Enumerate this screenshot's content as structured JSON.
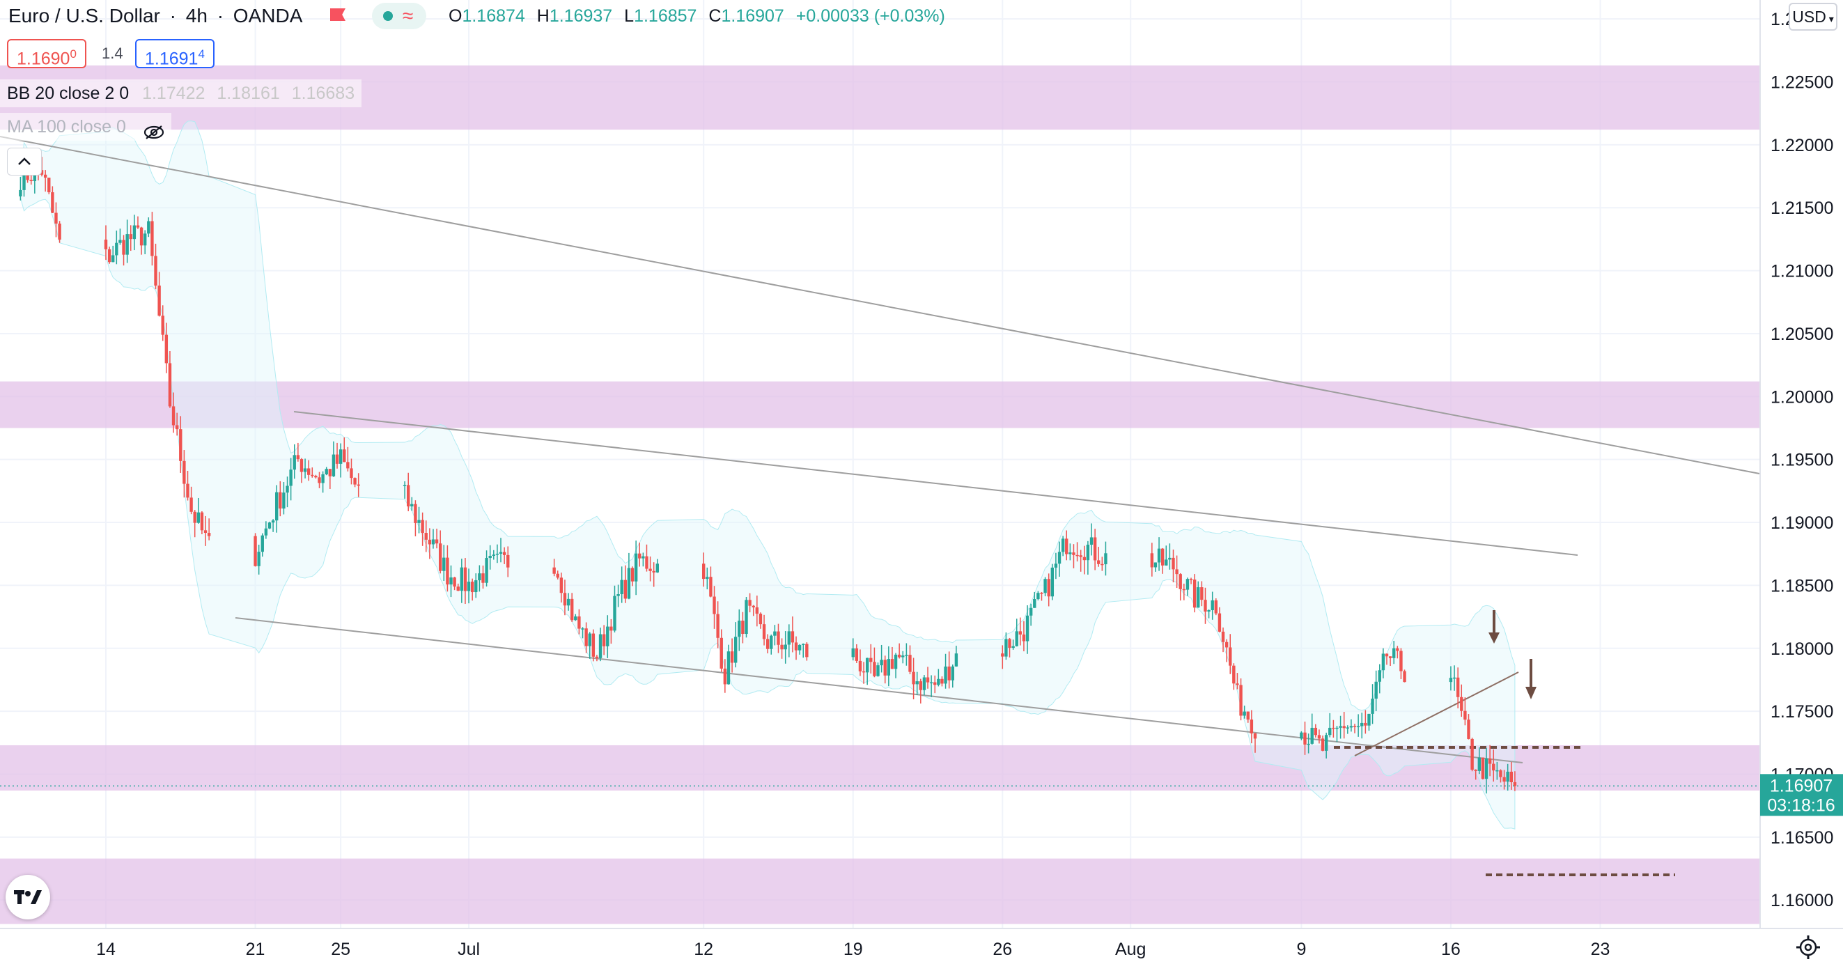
{
  "header": {
    "symbol": "Euro / U.S. Dollar",
    "interval": "4h",
    "broker": "OANDA",
    "o_label": "O",
    "o_value": "1.16874",
    "h_label": "H",
    "h_value": "1.16937",
    "l_label": "L",
    "l_value": "1.16857",
    "c_label": "C",
    "c_value": "1.16907",
    "change": "+0.00033 (+0.03%)"
  },
  "quote": {
    "bid": "1.1690",
    "bid_pip": "0",
    "spread": "1.4",
    "ask": "1.1691",
    "ask_pip": "4"
  },
  "indicators": {
    "bb_label": "BB 20 close 2 0",
    "bb_values": [
      "1.17422",
      "1.18161",
      "1.16683"
    ],
    "ma_label": "MA 100 close 0"
  },
  "currency_selector": "USD",
  "last_price": {
    "value": "1.16907",
    "countdown": "03:18:16"
  },
  "colors": {
    "up": "#26a69a",
    "down": "#ef5350",
    "zone": "#e1bee7",
    "trend": "#9e9e9e",
    "level": "#6d4c41"
  },
  "chart_data": {
    "type": "candlestick",
    "title": "Euro / U.S. Dollar",
    "interval": "4h",
    "yaxis": {
      "ylim": [
        1.1578,
        1.2315
      ],
      "ticks": [
        "1.23000",
        "1.22500",
        "1.22000",
        "1.21500",
        "1.21000",
        "1.20500",
        "1.20000",
        "1.19500",
        "1.19000",
        "1.18500",
        "1.18000",
        "1.17500",
        "1.17000",
        "1.16500",
        "1.16000"
      ]
    },
    "xaxis": {
      "tick_labels": [
        "14",
        "21",
        "25",
        "Jul",
        "12",
        "19",
        "26",
        "Aug",
        "9",
        "16",
        "23"
      ]
    },
    "grid": true,
    "zones": [
      {
        "from": 1.2212,
        "to": 1.2263
      },
      {
        "from": 1.1975,
        "to": 1.2012
      },
      {
        "from": 1.1687,
        "to": 1.1723
      },
      {
        "from": 1.1581,
        "to": 1.1633
      }
    ],
    "close_path": [
      [
        "Jun 10",
        1.2175
      ],
      [
        "Jun 11",
        1.218
      ],
      [
        "Jun 14",
        1.211
      ],
      [
        "Jun 15",
        1.2125
      ],
      [
        "Jun 16",
        1.213
      ],
      [
        "Jun 17",
        1.1995
      ],
      [
        "Jun 18",
        1.191
      ],
      [
        "Jun 21",
        1.1875
      ],
      [
        "Jun 22",
        1.1915
      ],
      [
        "Jun 23",
        1.195
      ],
      [
        "Jun 24",
        1.1935
      ],
      [
        "Jun 25",
        1.195
      ],
      [
        "Jun 28",
        1.192
      ],
      [
        "Jun 29",
        1.189
      ],
      [
        "Jun 30",
        1.186
      ],
      [
        "Jul 1",
        1.185
      ],
      [
        "Jul 2",
        1.1865
      ],
      [
        "Jul 5",
        1.187
      ],
      [
        "Jul 6",
        1.182
      ],
      [
        "Jul 7",
        1.1795
      ],
      [
        "Jul 8",
        1.184
      ],
      [
        "Jul 9",
        1.187
      ],
      [
        "Jul 12",
        1.1865
      ],
      [
        "Jul 13",
        1.178
      ],
      [
        "Jul 14",
        1.183
      ],
      [
        "Jul 15",
        1.1805
      ],
      [
        "Jul 16",
        1.1805
      ],
      [
        "Jul 19",
        1.1795
      ],
      [
        "Jul 20",
        1.1775
      ],
      [
        "Jul 21",
        1.1795
      ],
      [
        "Jul 22",
        1.1775
      ],
      [
        "Jul 23",
        1.177
      ],
      [
        "Jul 26",
        1.18
      ],
      [
        "Jul 27",
        1.1815
      ],
      [
        "Jul 28",
        1.1845
      ],
      [
        "Jul 29",
        1.1885
      ],
      [
        "Jul 30",
        1.188
      ],
      [
        "Aug 2",
        1.187
      ],
      [
        "Aug 3",
        1.1865
      ],
      [
        "Aug 4",
        1.184
      ],
      [
        "Aug 5",
        1.1835
      ],
      [
        "Aug 6",
        1.176
      ],
      [
        "Aug 9",
        1.1735
      ],
      [
        "Aug 10",
        1.172
      ],
      [
        "Aug 11",
        1.174
      ],
      [
        "Aug 12",
        1.1735
      ],
      [
        "Aug 13",
        1.1795
      ],
      [
        "Aug 16",
        1.178
      ],
      [
        "Aug 17",
        1.171
      ],
      [
        "Aug 18",
        1.17
      ],
      [
        "Aug 19",
        1.16907
      ]
    ],
    "last": 1.16907
  }
}
